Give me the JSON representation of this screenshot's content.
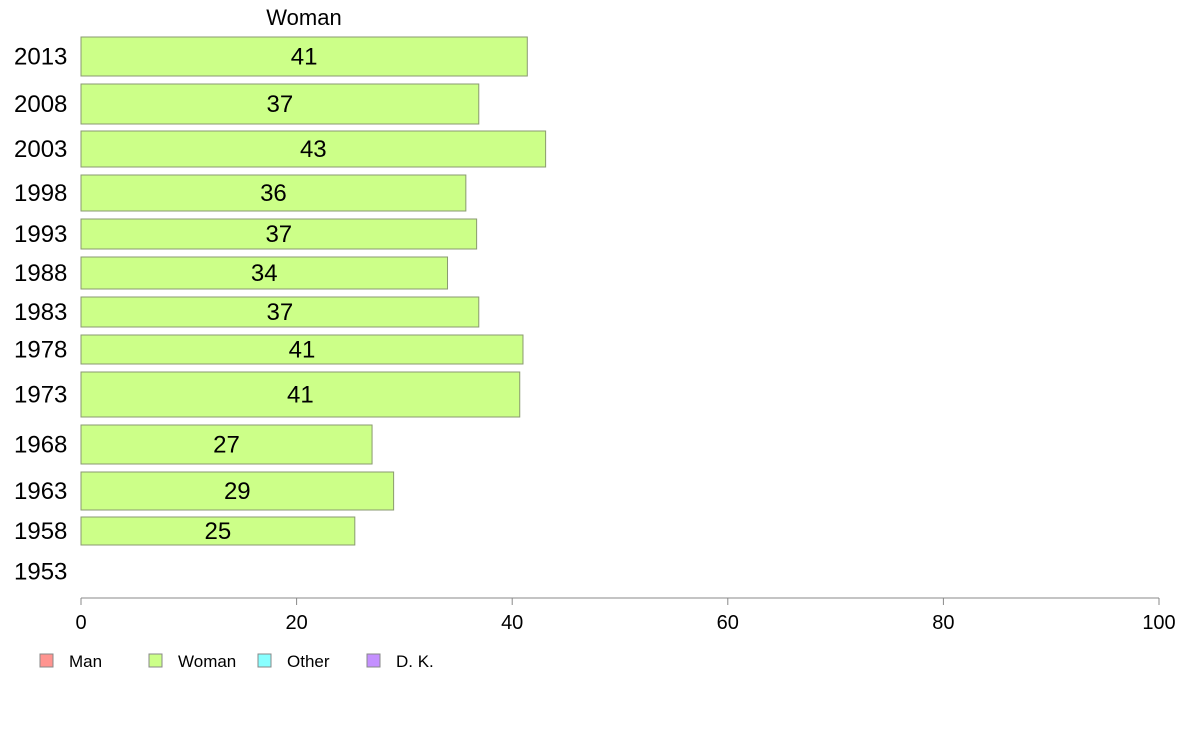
{
  "chart_data": {
    "type": "bar",
    "orientation": "horizontal",
    "title": "Woman",
    "categories": [
      "2013",
      "2008",
      "2003",
      "1998",
      "1993",
      "1988",
      "1983",
      "1978",
      "1973",
      "1968",
      "1963",
      "1958",
      "1953"
    ],
    "series": [
      {
        "name": "Woman",
        "color": "#ccff88",
        "values": [
          41,
          37,
          43,
          36,
          37,
          34,
          37,
          41,
          41,
          27,
          29,
          25,
          null
        ],
        "bar_lengths": [
          41.4,
          36.9,
          43.1,
          35.7,
          36.7,
          34.0,
          36.9,
          41.0,
          40.7,
          27.0,
          29.0,
          25.4,
          null
        ]
      }
    ],
    "xlim": [
      0,
      100
    ],
    "xticks": [
      "0",
      "20",
      "40",
      "60",
      "80",
      "100"
    ],
    "grid": false,
    "legend": {
      "placement": "bottom-left",
      "items": [
        {
          "label": "Man",
          "color": "#ff9490"
        },
        {
          "label": "Woman",
          "color": "#ccff88"
        },
        {
          "label": "Other",
          "color": "#88ffff"
        },
        {
          "label": "D. K.",
          "color": "#c490ff"
        }
      ]
    }
  }
}
